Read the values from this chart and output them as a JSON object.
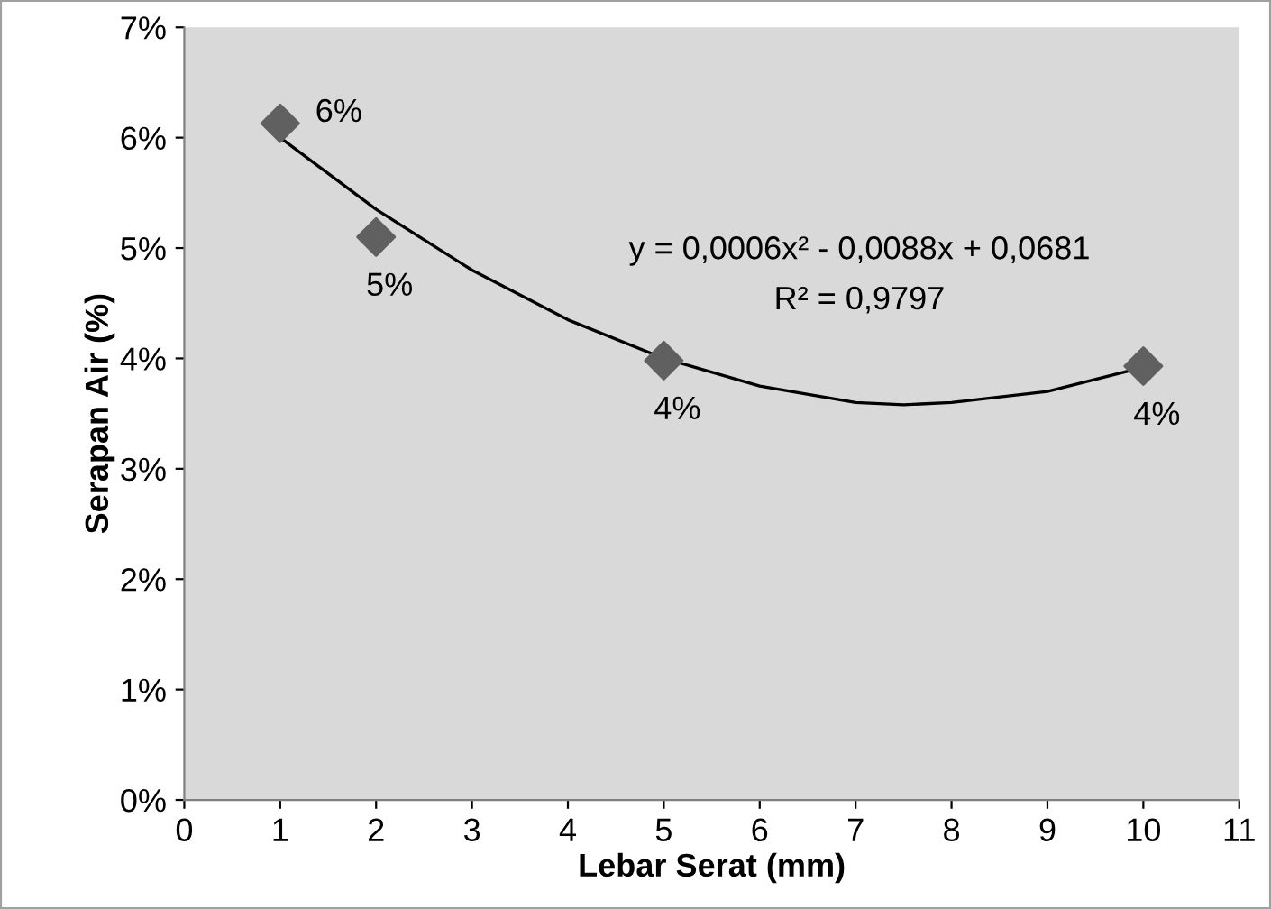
{
  "chart_data": {
    "type": "scatter",
    "xlabel": "Lebar Serat (mm)",
    "ylabel": "Serapan Air (%)",
    "x": [
      1,
      2,
      5,
      10
    ],
    "series": [
      {
        "color": "#606060",
        "values": [
          6.13,
          5.1,
          3.98,
          3.93
        ],
        "value_labels": [
          "6%",
          "5%",
          "4%",
          "4%"
        ],
        "marker": "diamond"
      },
      {
        "type": "line",
        "color": "#000000",
        "x": [
          1,
          2,
          3,
          4,
          5,
          6,
          7,
          7.5,
          8,
          9,
          10
        ],
        "values": [
          6.0,
          5.35,
          4.8,
          4.35,
          4.0,
          3.75,
          3.6,
          3.58,
          3.6,
          3.7,
          3.92
        ],
        "marker": "none",
        "line_style": "solid"
      }
    ],
    "annotations": [
      "y = 0,0006x² - 0,0088x + 0,0681",
      "R² = 0,9797"
    ],
    "xlim": [
      0,
      11
    ],
    "xticks": [
      0,
      1,
      2,
      3,
      4,
      5,
      6,
      7,
      8,
      9,
      10,
      11
    ],
    "ylim": [
      0,
      7
    ],
    "yticks": [
      {
        "value": 0,
        "label": "0%"
      },
      {
        "value": 1,
        "label": "1%"
      },
      {
        "value": 2,
        "label": "2%"
      },
      {
        "value": 3,
        "label": "3%"
      },
      {
        "value": 4,
        "label": "4%"
      },
      {
        "value": 5,
        "label": "5%"
      },
      {
        "value": 6,
        "label": "6%"
      },
      {
        "value": 7,
        "label": "7%"
      }
    ],
    "grid": false,
    "legend": false
  }
}
